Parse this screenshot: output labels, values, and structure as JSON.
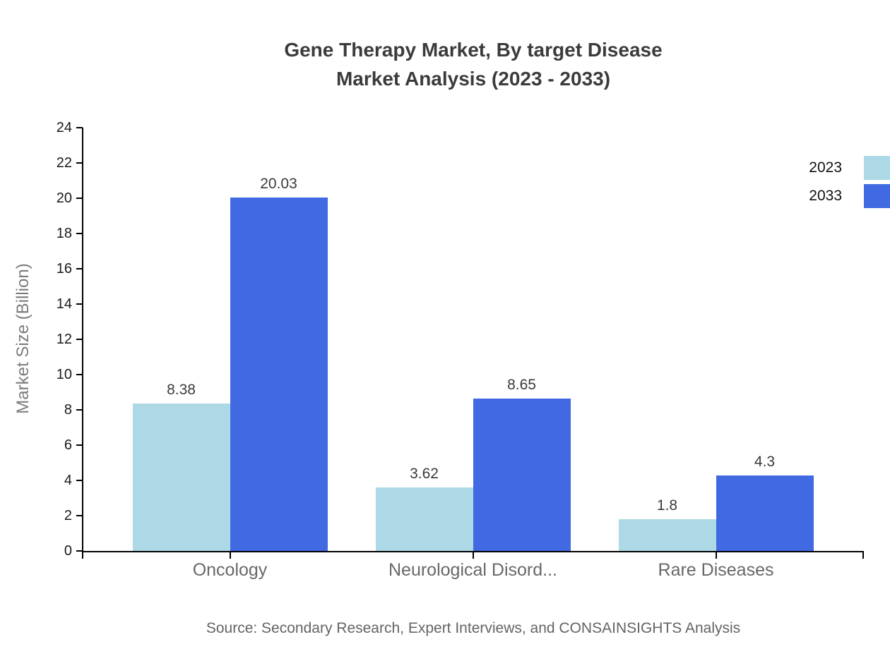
{
  "title": {
    "line1": "Gene Therapy Market, By target Disease",
    "line2": "Market Analysis (2023 - 2033)"
  },
  "source_text": "Source: Secondary Research, Expert Interviews, and CONSAINSIGHTS Analysis",
  "chart_data": {
    "type": "bar",
    "title": "Gene Therapy Market, By target Disease Market Analysis (2023 - 2033)",
    "categories": [
      "Oncology",
      "Neurological Disord...",
      "Rare Diseases"
    ],
    "series": [
      {
        "name": "2023",
        "color": "#ADD8E6",
        "values": [
          8.38,
          3.62,
          1.8
        ]
      },
      {
        "name": "2033",
        "color": "#4169E1",
        "values": [
          20.03,
          8.65,
          4.3
        ]
      }
    ],
    "xlabel": "",
    "ylabel": "Market Size (Billion)",
    "ylim": [
      0,
      24
    ],
    "ytick_step": 2,
    "grid": false,
    "legend_position": "top-right",
    "value_labels_shown": true
  }
}
